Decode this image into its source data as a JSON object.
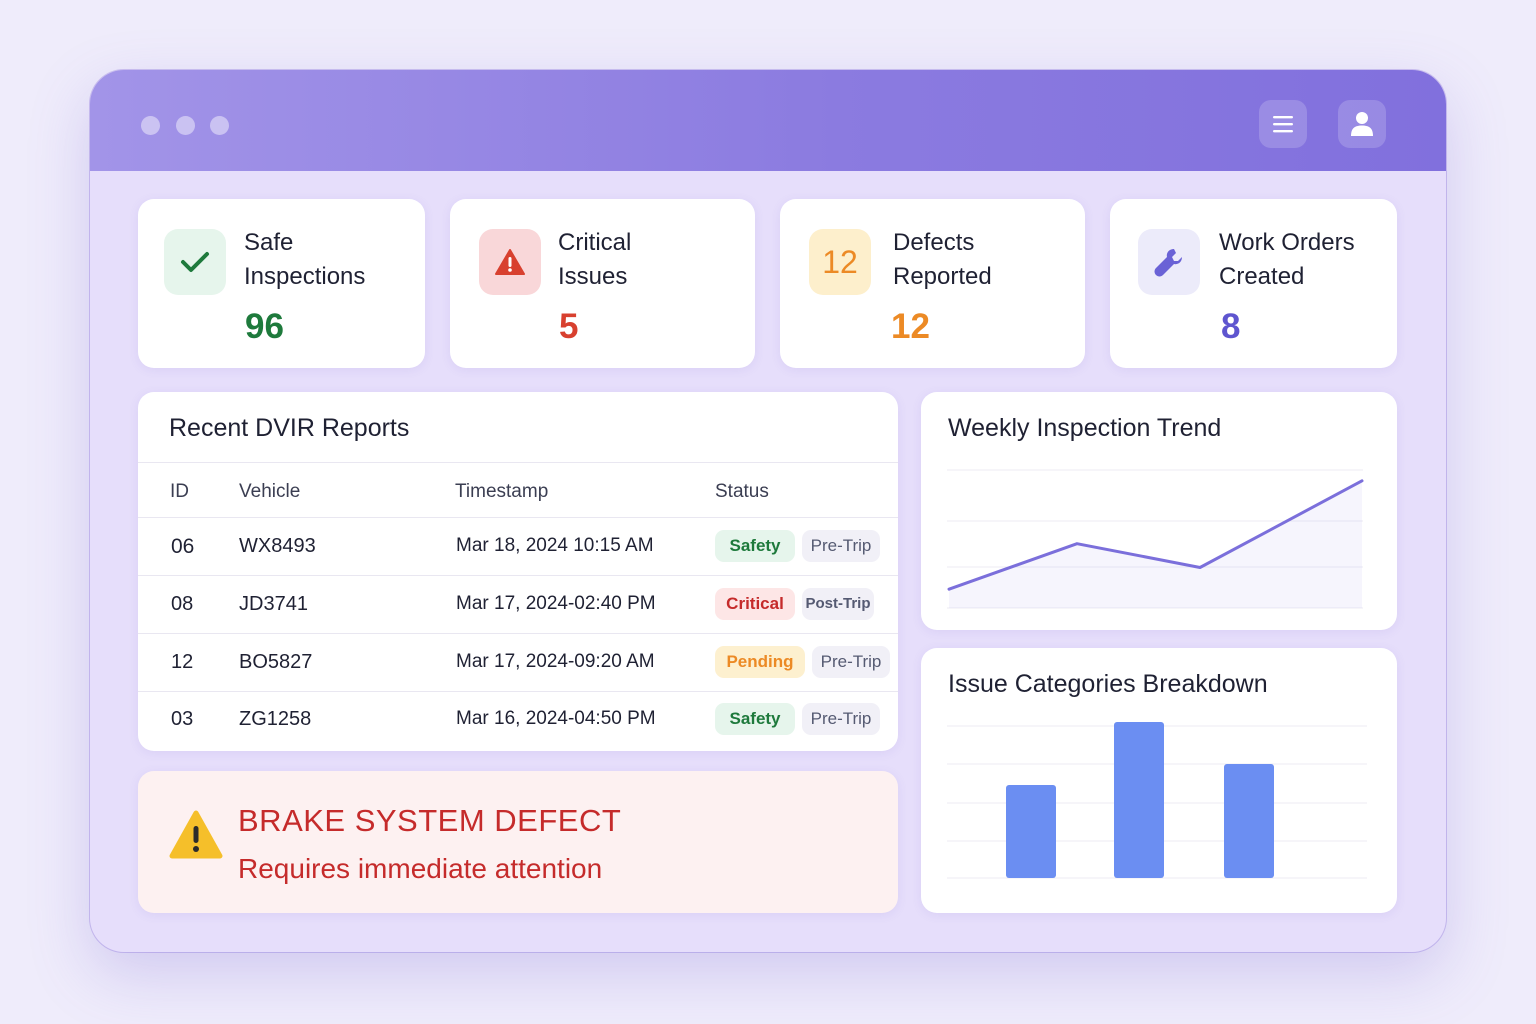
{
  "titlebar": {
    "window_dots": 3,
    "menu_icon": "menu-icon",
    "user_icon": "user-icon"
  },
  "stats": [
    {
      "label_line1": "Safe",
      "label_line2": "Inspections",
      "value": "96",
      "icon": "check-icon",
      "color": "#1e7a3c",
      "icon_bg": "#e6f5ec"
    },
    {
      "label_line1": "Critical",
      "label_line2": "Issues",
      "value": "5",
      "icon": "warning-icon",
      "color": "#d8402f",
      "icon_bg": "#f9d7d9"
    },
    {
      "label_line1": "Defects",
      "label_line2": "Reported",
      "value": "12",
      "icon_text": "12",
      "color": "#ec8a25",
      "icon_bg": "#fdefcc"
    },
    {
      "label_line1": "Work Orders",
      "label_line2": "Created",
      "value": "8",
      "icon": "wrench-icon",
      "color": "#5e55cf",
      "icon_bg": "#ecebfa"
    }
  ],
  "reports": {
    "title": "Recent DVIR Reports",
    "columns": [
      "ID",
      "Vehicle",
      "Timestamp",
      "Status"
    ],
    "rows": [
      {
        "id": "06",
        "vehicle": "WX8493",
        "timestamp": "Mar 18, 2024 10:15 AM",
        "status": "Safety",
        "type": "Pre-Trip"
      },
      {
        "id": "08",
        "vehicle": "JD3741",
        "timestamp": "Mar 17, 2024-02:40 PM",
        "status": "Critical",
        "type": "Post-Trip"
      },
      {
        "id": "12",
        "vehicle": "BO5827",
        "timestamp": "Mar 17, 2024-09:20 AM",
        "status": "Pending",
        "type": "Pre-Trip"
      },
      {
        "id": "03",
        "vehicle": "ZG1258",
        "timestamp": "Mar 16, 2024-04:50 PM",
        "status": "Safety",
        "type": "Pre-Trip"
      }
    ]
  },
  "alert": {
    "title": "BRAKE SYSTEM DEFECT",
    "message": "Requires immediate attention",
    "icon": "warning-triangle-icon"
  },
  "trend": {
    "title": "Weekly Inspection Trend",
    "chart_data": {
      "type": "line",
      "x": [
        0,
        1,
        2,
        3
      ],
      "values": [
        10,
        52,
        30,
        110
      ],
      "ylim": [
        0,
        120
      ],
      "color": "#7b6fdb"
    }
  },
  "breakdown": {
    "title": "Issue Categories Breakdown",
    "chart_data": {
      "type": "bar",
      "values": [
        62,
        104,
        76
      ],
      "ylim": [
        0,
        104
      ],
      "color": "#6b8ef2"
    }
  }
}
